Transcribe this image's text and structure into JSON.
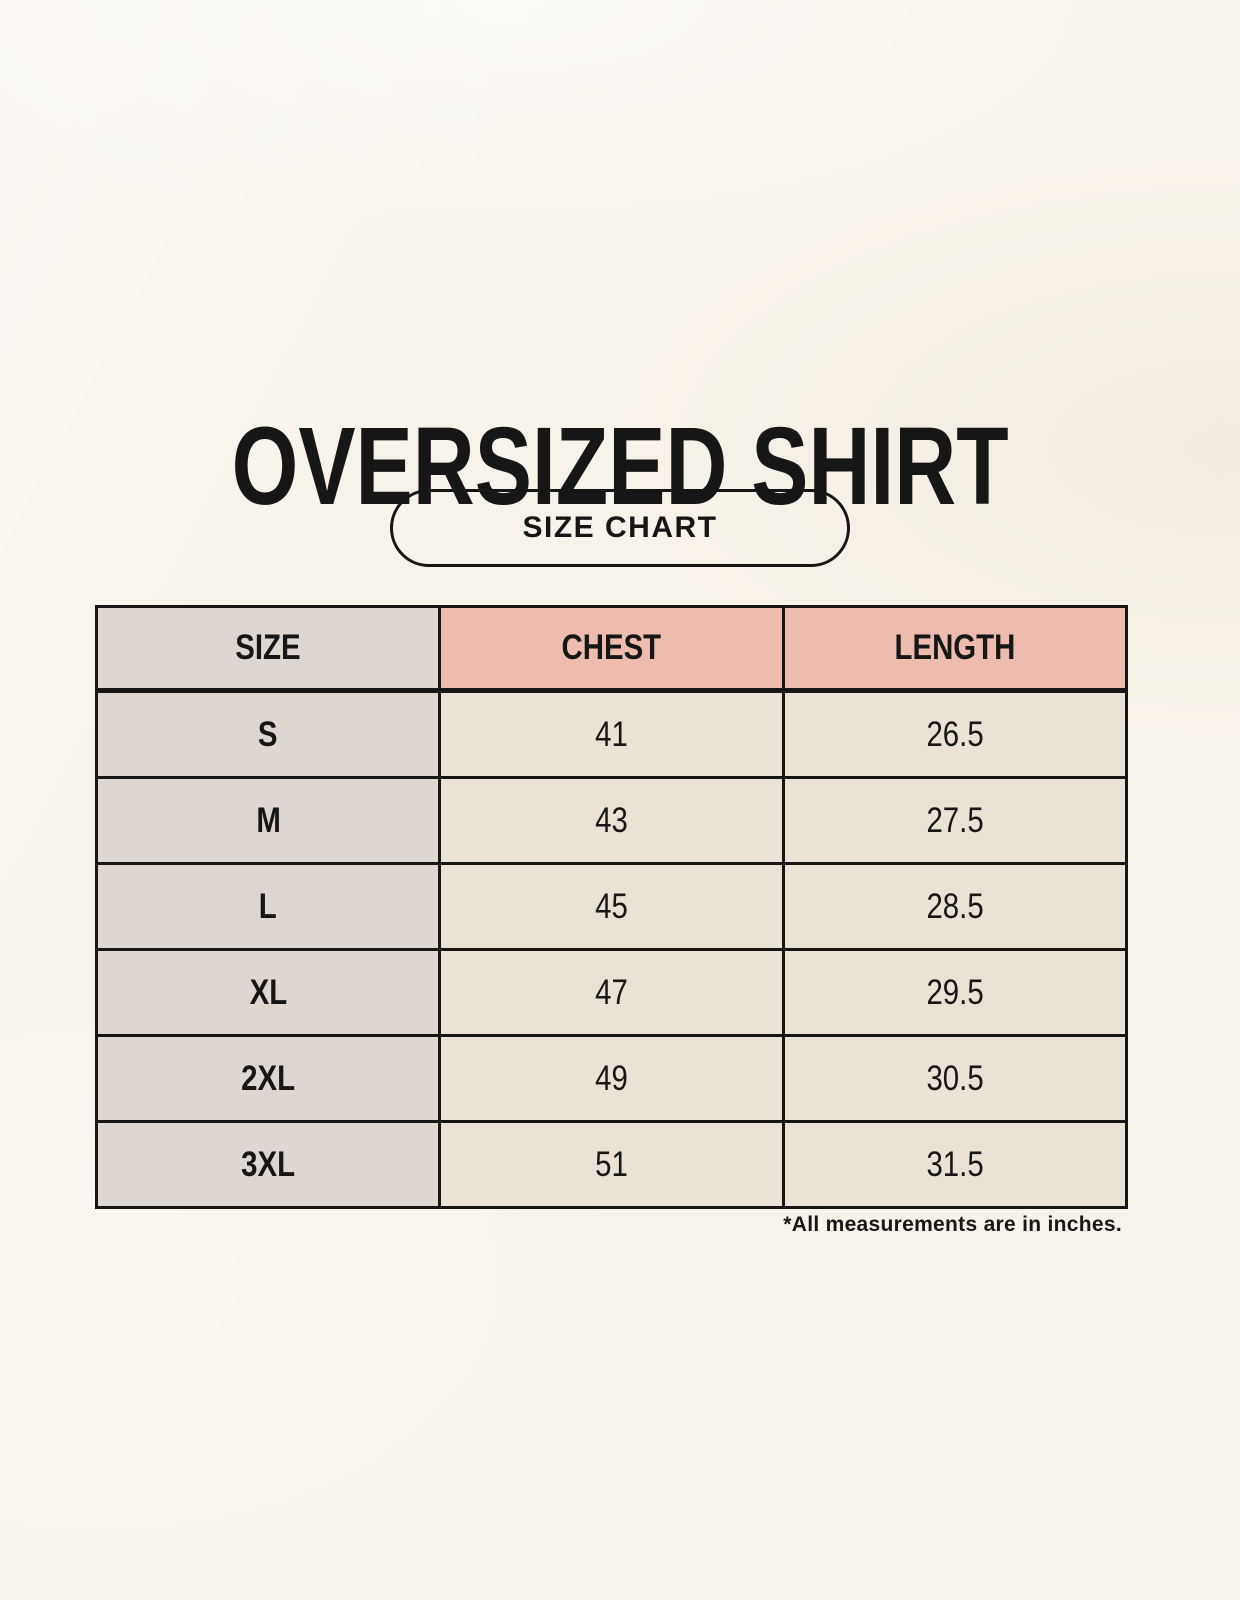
{
  "header": {
    "title": "OVERSIZED SHIRT",
    "badge_label": "SIZE CHART"
  },
  "chart_data": {
    "type": "table",
    "title": "OVERSIZED SHIRT",
    "columns": [
      "SIZE",
      "CHEST",
      "LENGTH"
    ],
    "rows": [
      [
        "S",
        "41",
        "26.5"
      ],
      [
        "M",
        "43",
        "27.5"
      ],
      [
        "L",
        "45",
        "28.5"
      ],
      [
        "XL",
        "47",
        "29.5"
      ],
      [
        "2XL",
        "49",
        "30.5"
      ],
      [
        "3XL",
        "51",
        "31.5"
      ]
    ],
    "units": "inches"
  },
  "footer": {
    "note": "*All measurements are in inches."
  },
  "colors": {
    "page_background": "#f8f3ea",
    "size_column_background": "#ded6d1",
    "measure_header_background": "#edbcae",
    "data_cell_background": "#e9e2d5",
    "border": "#161616",
    "text": "#161616"
  }
}
